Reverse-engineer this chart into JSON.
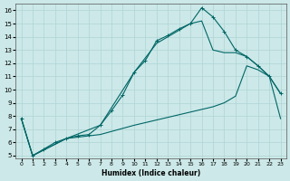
{
  "xlabel": "Humidex (Indice chaleur)",
  "ylabel": "",
  "xlim": [
    -0.5,
    23.5
  ],
  "ylim": [
    4.8,
    16.5
  ],
  "xticks": [
    0,
    1,
    2,
    3,
    4,
    5,
    6,
    7,
    8,
    9,
    10,
    11,
    12,
    13,
    14,
    15,
    16,
    17,
    18,
    19,
    20,
    21,
    22,
    23
  ],
  "yticks": [
    5,
    6,
    7,
    8,
    9,
    10,
    11,
    12,
    13,
    14,
    15,
    16
  ],
  "bg_color": "#cce8e8",
  "grid_color": "#b0d4d4",
  "line_color": "#006666",
  "curve1_x": [
    0,
    1,
    2,
    3,
    4,
    5,
    6,
    7,
    8,
    9,
    10,
    11,
    12,
    13,
    14,
    15,
    16,
    17,
    18,
    19,
    20,
    21,
    22,
    23
  ],
  "curve1_y": [
    7.8,
    5.0,
    5.5,
    6.0,
    6.3,
    6.5,
    6.6,
    7.3,
    8.4,
    9.6,
    11.3,
    12.2,
    13.7,
    14.1,
    14.6,
    15.0,
    16.2,
    15.5,
    14.4,
    13.0,
    12.5,
    11.8,
    11.0,
    9.7
  ],
  "curve2_x": [
    0,
    1,
    4,
    7,
    10,
    12,
    14,
    15,
    16,
    17,
    18,
    19,
    20,
    21,
    22,
    23
  ],
  "curve2_y": [
    7.8,
    5.0,
    6.3,
    7.3,
    11.3,
    13.5,
    14.5,
    15.0,
    15.2,
    13.0,
    12.8,
    12.8,
    12.5,
    11.8,
    11.0,
    9.7
  ],
  "curve3_x": [
    0,
    1,
    4,
    7,
    10,
    12,
    14,
    15,
    16,
    17,
    18,
    19,
    20,
    21,
    22,
    23
  ],
  "curve3_y": [
    7.8,
    5.0,
    6.3,
    6.6,
    7.3,
    7.7,
    8.1,
    8.3,
    8.5,
    8.7,
    9.0,
    9.5,
    11.8,
    11.5,
    11.0,
    7.8
  ]
}
